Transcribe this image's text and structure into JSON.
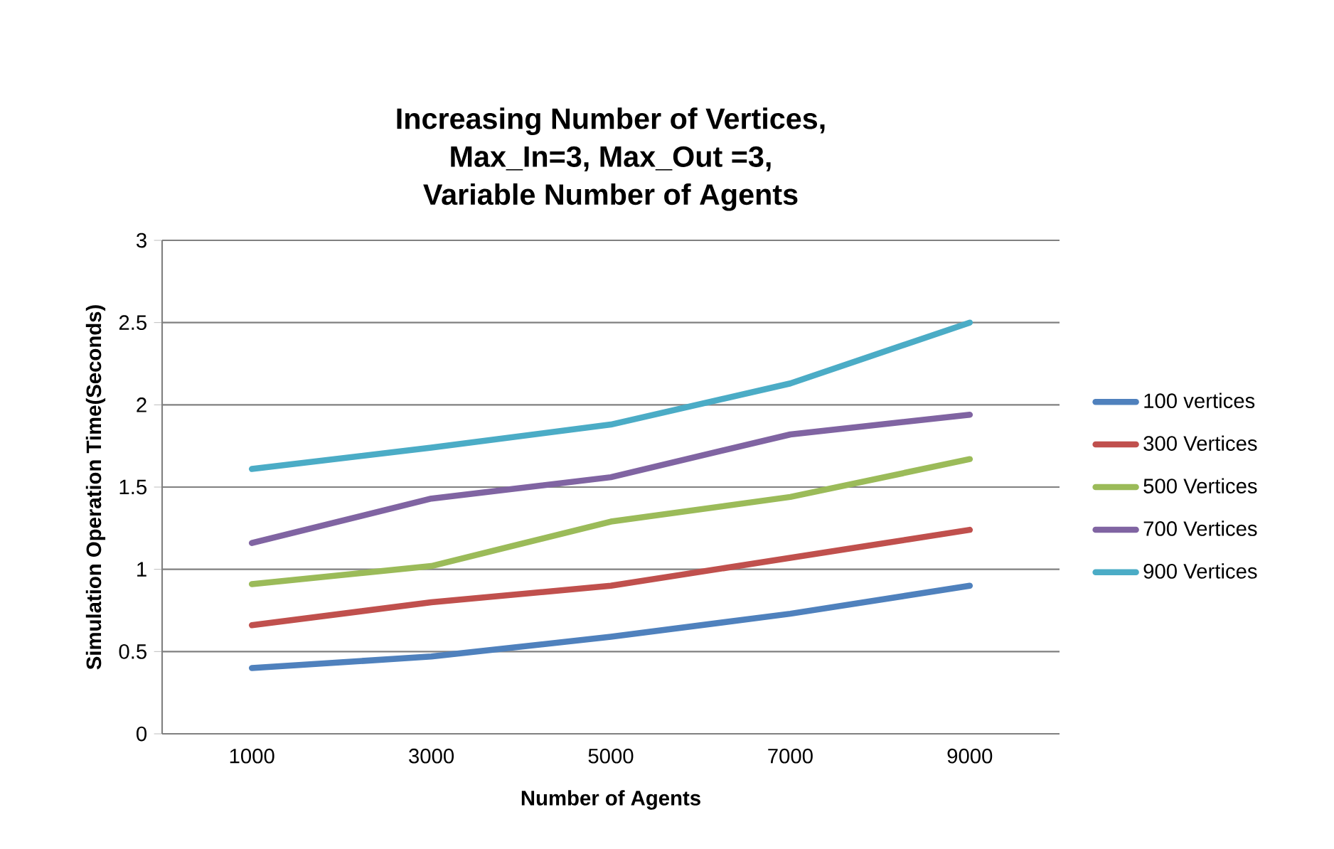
{
  "chart_data": {
    "type": "line",
    "title": "Increasing Number of Vertices,\nMax_In=3, Max_Out =3,\nVariable Number of Agents",
    "xlabel": "Number of Agents",
    "ylabel": "Simulation Operation Time(Seconds)",
    "categories": [
      "1000",
      "3000",
      "5000",
      "7000",
      "9000"
    ],
    "series": [
      {
        "name": "100 vertices",
        "color": "#4f81bd",
        "values": [
          0.4,
          0.47,
          0.59,
          0.73,
          0.9
        ]
      },
      {
        "name": "300 Vertices",
        "color": "#c0504d",
        "values": [
          0.66,
          0.8,
          0.9,
          1.07,
          1.24
        ]
      },
      {
        "name": "500 Vertices",
        "color": "#9bbb59",
        "values": [
          0.91,
          1.02,
          1.29,
          1.44,
          1.67
        ]
      },
      {
        "name": "700 Vertices",
        "color": "#8064a2",
        "values": [
          1.16,
          1.43,
          1.56,
          1.82,
          1.94
        ]
      },
      {
        "name": "900 Vertices",
        "color": "#4bacc6",
        "values": [
          1.61,
          1.74,
          1.88,
          2.13,
          2.5
        ]
      }
    ],
    "ylim": [
      0,
      3
    ],
    "yticks": [
      0,
      0.5,
      1,
      1.5,
      2,
      2.5,
      3
    ],
    "grid": "y",
    "legend": "right",
    "marker": "none",
    "line_style": "solid"
  }
}
